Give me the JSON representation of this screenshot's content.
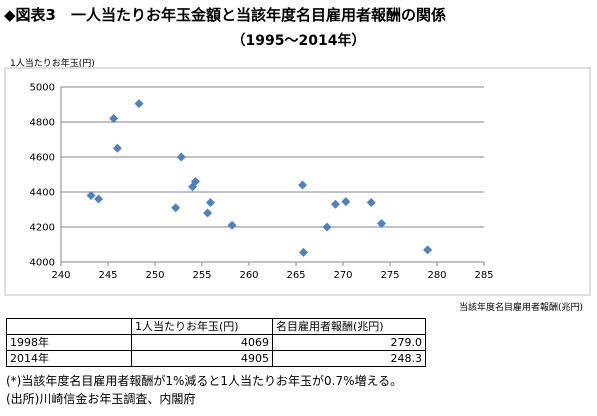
{
  "title": "◆図表3　一人当たりお年玉金額と当該年度名目雇用者報酬の関係",
  "subtitle": "（1995～2014年）",
  "chart_data": {
    "type": "scatter",
    "ylabel": "1人当たりお年玉(円)",
    "xlabel": "当該年度名目雇用者報酬(兆円)",
    "xlim": [
      240,
      285
    ],
    "ylim": [
      4000,
      5000
    ],
    "xticks": [
      240,
      245,
      250,
      255,
      260,
      265,
      270,
      275,
      280,
      285
    ],
    "yticks": [
      4000,
      4200,
      4400,
      4600,
      4800,
      5000
    ],
    "grid": "horizontal",
    "marker_color": "#4f81bd",
    "points": [
      {
        "x": 243.2,
        "y": 4380
      },
      {
        "x": 244.0,
        "y": 4360
      },
      {
        "x": 245.6,
        "y": 4820
      },
      {
        "x": 246.0,
        "y": 4650
      },
      {
        "x": 248.3,
        "y": 4905
      },
      {
        "x": 252.2,
        "y": 4310
      },
      {
        "x": 252.8,
        "y": 4600
      },
      {
        "x": 254.0,
        "y": 4430
      },
      {
        "x": 254.3,
        "y": 4460
      },
      {
        "x": 255.6,
        "y": 4280
      },
      {
        "x": 255.9,
        "y": 4340
      },
      {
        "x": 258.2,
        "y": 4210
      },
      {
        "x": 265.7,
        "y": 4440
      },
      {
        "x": 265.8,
        "y": 4055
      },
      {
        "x": 268.3,
        "y": 4200
      },
      {
        "x": 269.2,
        "y": 4330
      },
      {
        "x": 270.3,
        "y": 4345
      },
      {
        "x": 273.0,
        "y": 4340
      },
      {
        "x": 274.1,
        "y": 4220
      },
      {
        "x": 279.0,
        "y": 4069
      }
    ]
  },
  "table": {
    "headers": [
      "",
      "1人当たりお年玉(円)",
      "名目雇用者報酬(兆円)"
    ],
    "rows": [
      [
        "1998年",
        "4069",
        "279.0"
      ],
      [
        "2014年",
        "4905",
        "248.3"
      ]
    ]
  },
  "notes": [
    "(*)当該年度名目雇用者報酬が1%減ると1人当たりお年玉が0.7%増える。",
    "(出所)川崎信金お年玉調査、内閣府"
  ]
}
